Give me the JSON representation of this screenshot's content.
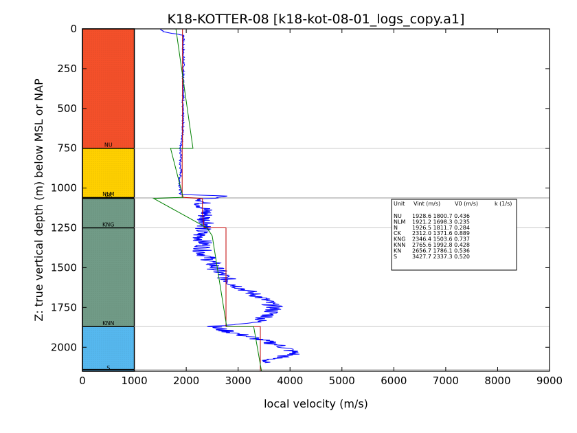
{
  "chart_data": {
    "type": "line",
    "title": "K18-KOTTER-08 [k18-kot-08-01_logs_copy.a1]",
    "xlabel": "local velocity (m/s)",
    "ylabel": "Z: true vertical depth (m) below MSL or NAP",
    "xlim": [
      0,
      9000
    ],
    "ylim": [
      2150,
      0
    ],
    "y_inverted": true,
    "x_ticks": [
      "0",
      "1000",
      "2000",
      "3000",
      "4000",
      "5000",
      "6000",
      "7000",
      "8000",
      "9000"
    ],
    "y_ticks": [
      "0",
      "250",
      "500",
      "750",
      "1000",
      "1250",
      "1500",
      "1750",
      "2000"
    ],
    "units": [
      {
        "name": "NU",
        "top": 0,
        "base": 750,
        "color": "#f4502a"
      },
      {
        "name": "NLM",
        "top": 1055,
        "base": 1058,
        "color": "#f4502a"
      },
      {
        "name": "CK",
        "top": 1058,
        "base": 1065,
        "color": "#ffd000"
      },
      {
        "name": "KNG",
        "top": 1065,
        "base": 1250,
        "color": "#719b87"
      },
      {
        "name": "KNN",
        "top": 1250,
        "base": 1870,
        "color": "#719b87"
      },
      {
        "name": "S",
        "top": 1870,
        "base": 2150,
        "color": "#56b8ef"
      }
    ],
    "column_fills": [
      {
        "top": 0,
        "base": 750,
        "color": "#f4502a"
      },
      {
        "top": 750,
        "base": 1060,
        "color": "#ffd000"
      },
      {
        "top": 1060,
        "base": 1870,
        "color": "#719b87"
      },
      {
        "top": 1870,
        "base": 2150,
        "color": "#56b8ef"
      }
    ],
    "column_x": [
      0,
      1000
    ],
    "boundaries": [
      0,
      750,
      1060,
      1065,
      1250,
      1870,
      2140
    ],
    "interval_velocity_red": [
      [
        1928.6,
        0
      ],
      [
        1928.6,
        750
      ],
      [
        1921.2,
        750
      ],
      [
        1921.2,
        1058
      ],
      [
        2312.0,
        1065
      ],
      [
        2312.0,
        1160
      ],
      [
        2346.4,
        1250
      ],
      [
        2765.6,
        1250
      ],
      [
        2765.6,
        1870
      ],
      [
        3427.7,
        1870
      ],
      [
        3427.7,
        2150
      ]
    ],
    "model_green": [
      [
        1800.7,
        0
      ],
      [
        2130,
        750
      ],
      [
        1698.3,
        750
      ],
      [
        1940,
        1058
      ],
      [
        1371.6,
        1065
      ],
      [
        2400,
        1250
      ],
      [
        2500,
        1300
      ],
      [
        2780,
        1870
      ],
      [
        3300,
        1870
      ],
      [
        3450,
        2150
      ]
    ],
    "log_trace": [
      [
        1500,
        0
      ],
      [
        1580,
        20
      ],
      [
        1950,
        40
      ],
      [
        1940,
        100
      ],
      [
        1950,
        200
      ],
      [
        1940,
        300
      ],
      [
        1950,
        400
      ],
      [
        1930,
        500
      ],
      [
        1940,
        600
      ],
      [
        1920,
        700
      ],
      [
        1880,
        760
      ],
      [
        1900,
        800
      ],
      [
        1880,
        850
      ],
      [
        1900,
        900
      ],
      [
        1870,
        950
      ],
      [
        1880,
        1000
      ],
      [
        1890,
        1040
      ],
      [
        2800,
        1050
      ],
      [
        2350,
        1070
      ],
      [
        2300,
        1100
      ],
      [
        2380,
        1150
      ],
      [
        2350,
        1200
      ],
      [
        2450,
        1220
      ],
      [
        2300,
        1260
      ],
      [
        2250,
        1300
      ],
      [
        2350,
        1350
      ],
      [
        2300,
        1400
      ],
      [
        2450,
        1450
      ],
      [
        2550,
        1500
      ],
      [
        2700,
        1550
      ],
      [
        2900,
        1600
      ],
      [
        3200,
        1650
      ],
      [
        3500,
        1700
      ],
      [
        3700,
        1750
      ],
      [
        3600,
        1800
      ],
      [
        3300,
        1850
      ],
      [
        2500,
        1870
      ],
      [
        2800,
        1900
      ],
      [
        3400,
        1950
      ],
      [
        3900,
        2000
      ],
      [
        4100,
        2040
      ],
      [
        3700,
        2070
      ],
      [
        3400,
        2100
      ]
    ],
    "legend": {
      "header": [
        "Unit",
        "Vint (m/s)",
        "V0 (m/s)",
        "k (1/s)"
      ],
      "rows": [
        "NU      1928.6  1800.7  0.436",
        "NLM     1921.2  1698.3  0.235",
        "N       1926.5  1811.7  0.284",
        "CK      2312.0  1371.6  0.889",
        "KNG     2346.4  1503.6  0.737",
        "KNN     2765.6  1992.8  0.428",
        "KN      2656.7  1786.1  0.536",
        "S       3427.7  2337.3  0.520"
      ],
      "placement": "right"
    }
  }
}
